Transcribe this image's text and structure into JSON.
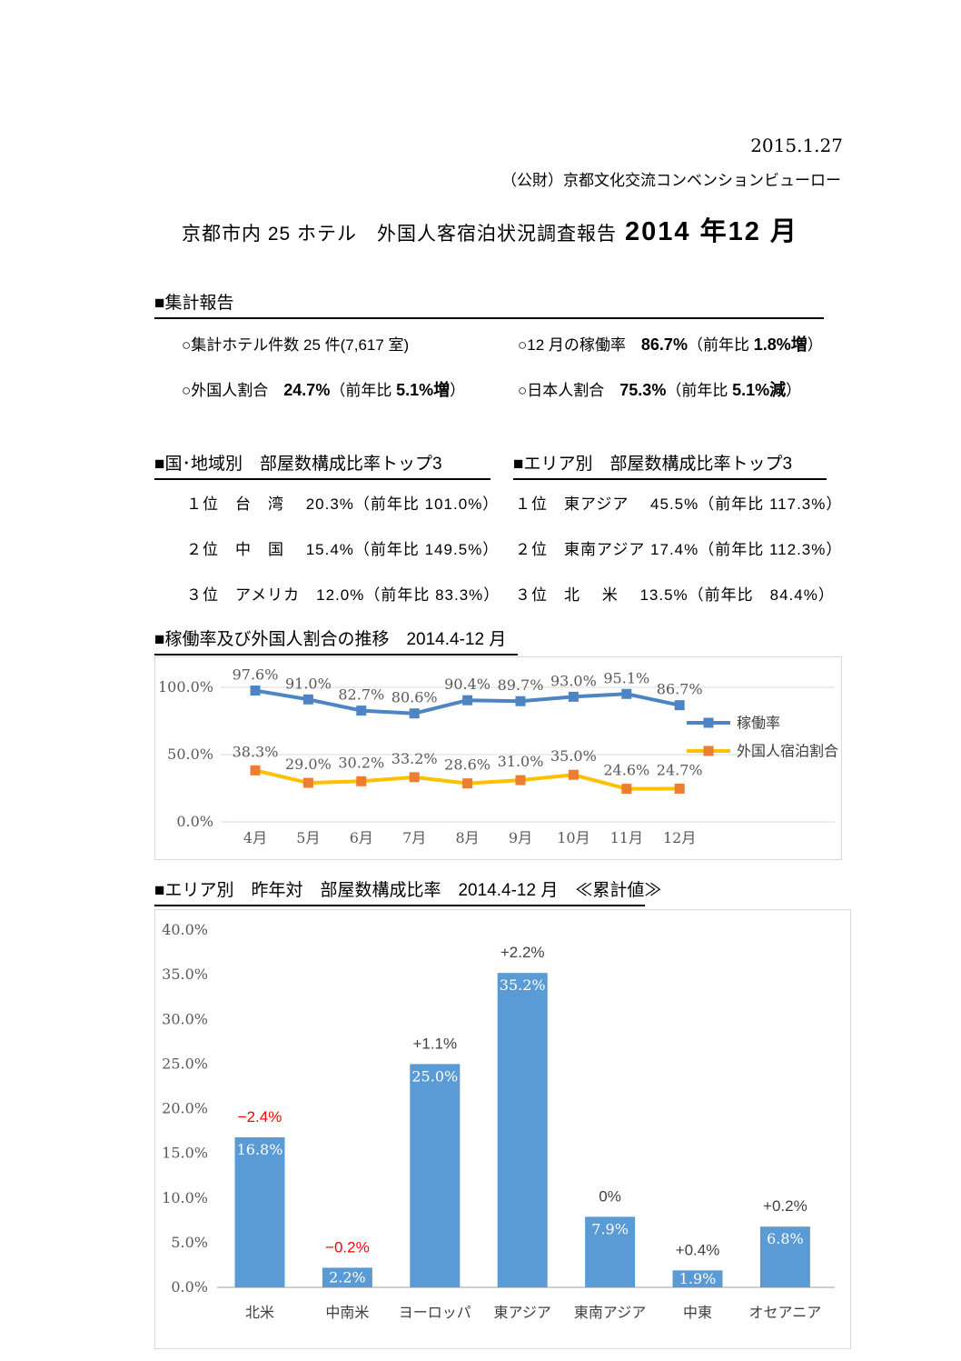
{
  "header": {
    "date": "2015.1.27",
    "organization": "（公財）京都文化交流コンベンションビューロー"
  },
  "title": {
    "main": "京都市内 25 ホテル　外国人客宿泊状況調査報告",
    "period": "2014 年12 月"
  },
  "summary": {
    "heading": "■集計報告",
    "items": [
      {
        "label": "○集計ホテル件数 25 件(7,617 室)",
        "value": "",
        "pre": "",
        "delta": "",
        "post": ""
      },
      {
        "label": "○12 月の稼働率　",
        "value": "86.7%",
        "pre": "（前年比 ",
        "delta": "1.8%増",
        "post": "）"
      },
      {
        "label": "○外国人割合　",
        "value": "24.7%",
        "pre": "（前年比 ",
        "delta": "5.1%増",
        "post": "）"
      },
      {
        "label": "○日本人割合　",
        "value": "75.3%",
        "pre": "（前年比 ",
        "delta": "5.1%減",
        "post": "）"
      }
    ]
  },
  "rankings": {
    "country": {
      "heading": "■国･地域別　部屋数構成比率トップ3",
      "rows": [
        "１位　台　湾　 20.3%（前年比 101.0%）",
        "２位　中　国　 15.4%（前年比 149.5%）",
        "３位　アメリカ　12.0%（前年比 83.3%）"
      ]
    },
    "area": {
      "heading": "■エリア別　部屋数構成比率トップ3",
      "rows": [
        "１位　東アジア　 45.5%（前年比 117.3%）",
        "２位　東南アジア 17.4%（前年比 112.3%）",
        "３位　北　 米　  13.5%（前年比　84.4%）"
      ]
    }
  },
  "chart_data": [
    {
      "id": "occupancy-trend",
      "type": "line",
      "title": "■稼働率及び外国人割合の推移　2014.4-12 月",
      "categories": [
        "4月",
        "5月",
        "6月",
        "7月",
        "8月",
        "9月",
        "10月",
        "11月",
        "12月"
      ],
      "series": [
        {
          "name": "稼働率",
          "color": "#4c84c4",
          "marker_color": "#4c84c4",
          "values": [
            97.6,
            91.0,
            82.7,
            80.6,
            90.4,
            89.7,
            93.0,
            95.1,
            86.7
          ],
          "labels": [
            "97.6%",
            "91.0%",
            "82.7%",
            "80.6%",
            "90.4%",
            "89.7%",
            "93.0%",
            "95.1%",
            "86.7%"
          ]
        },
        {
          "name": "外国人宿泊割合",
          "color": "#ffc000",
          "marker_color": "#ed7d31",
          "values": [
            38.3,
            29.0,
            30.2,
            33.2,
            28.6,
            31.0,
            35.0,
            24.6,
            24.7
          ],
          "labels": [
            "38.3%",
            "29.0%",
            "30.2%",
            "33.2%",
            "28.6%",
            "31.0%",
            "35.0%",
            "24.6%",
            "24.7%"
          ]
        }
      ],
      "yticks": [
        {
          "value": 0,
          "label": "0.0%"
        },
        {
          "value": 50,
          "label": "50.0%"
        },
        {
          "value": 100,
          "label": "100.0%"
        }
      ],
      "ylim": [
        0,
        122
      ],
      "grid": true,
      "legend_position": "right",
      "grid_color": "#d9d9d9"
    },
    {
      "id": "area-composition",
      "type": "bar",
      "title": "■エリア別　昨年対　部屋数構成比率　2014.4-12 月　≪累計値≫",
      "categories": [
        "北米",
        "中南米",
        "ヨーロッパ",
        "東アジア",
        "東南アジア",
        "中東",
        "オセアニア"
      ],
      "values": [
        16.8,
        2.2,
        25.0,
        35.2,
        7.9,
        1.9,
        6.8
      ],
      "value_labels": [
        "16.8%",
        "2.2%",
        "25.0%",
        "35.2%",
        "7.9%",
        "1.9%",
        "6.8%"
      ],
      "change_labels": [
        "−2.4%",
        "−0.2%",
        "+1.1%",
        "+2.2%",
        "0%",
        "+0.4%",
        "+0.2%"
      ],
      "change_colors": [
        "#ff0000",
        "#ff0000",
        "#404040",
        "#404040",
        "#404040",
        "#404040",
        "#404040"
      ],
      "bar_color": "#5b9bd5",
      "xlabel": "",
      "ylabel": "",
      "ylim": [
        0,
        40
      ],
      "yticks": [
        "0.0%",
        "5.0%",
        "10.0%",
        "15.0%",
        "20.0%",
        "25.0%",
        "30.0%",
        "35.0%",
        "40.0%"
      ],
      "grid": false,
      "axis_color": "#bfbfbf"
    }
  ]
}
